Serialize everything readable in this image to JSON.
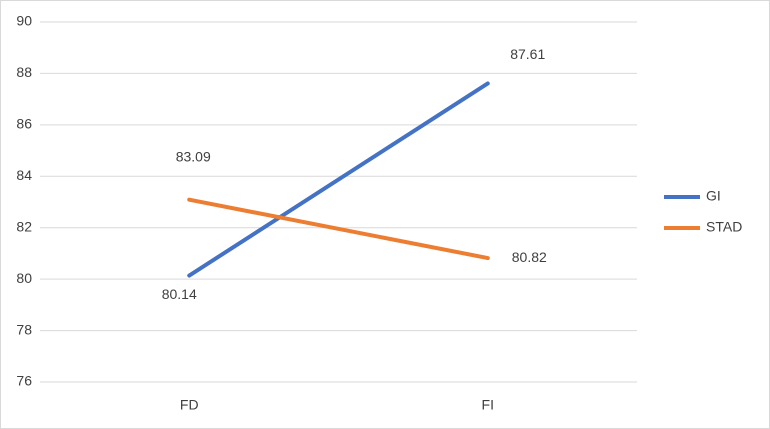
{
  "chart_data": {
    "type": "line",
    "categories": [
      "FD",
      "FI"
    ],
    "series": [
      {
        "name": "GI",
        "color": "#4472c4",
        "values": [
          80.14,
          87.61
        ]
      },
      {
        "name": "STAD",
        "color": "#ed7d31",
        "values": [
          83.09,
          80.82
        ]
      }
    ],
    "ylim": [
      76,
      90
    ],
    "yticks": [
      76,
      78,
      80,
      82,
      84,
      86,
      88,
      90
    ],
    "grid": true,
    "legend": "right"
  }
}
